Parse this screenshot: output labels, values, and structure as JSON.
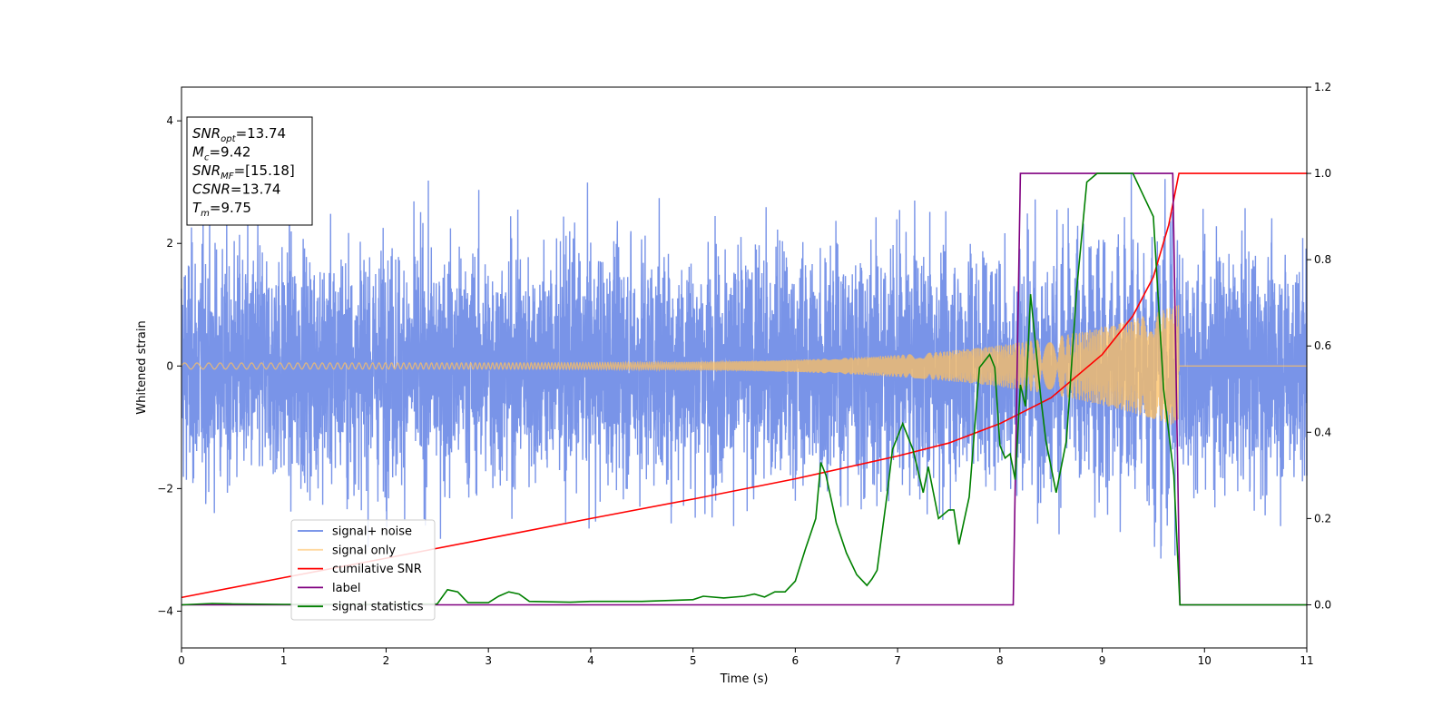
{
  "chart_data": {
    "type": "line",
    "xlabel": "Time (s)",
    "ylabel": "Whitened strain",
    "xlim": [
      0,
      11
    ],
    "ylim_left": [
      -4.6,
      4.55
    ],
    "ylim_right": [
      -0.1,
      1.2
    ],
    "x_ticks": [
      "0",
      "1",
      "2",
      "3",
      "4",
      "5",
      "6",
      "7",
      "8",
      "9",
      "10",
      "11"
    ],
    "y_ticks_left": [
      "−4",
      "−2",
      "0",
      "2",
      "4"
    ],
    "y_ticks_right": [
      "0.0",
      "0.2",
      "0.4",
      "0.6",
      "0.8",
      "1.0",
      "1.2"
    ],
    "legend_position": "lower-left",
    "grid": false,
    "series": [
      {
        "name": "signal+ noise",
        "axis": "left",
        "color": "#6a88e6",
        "description_values": {
          "noise_std": 0.95,
          "t_end": 11
        }
      },
      {
        "name": "signal only",
        "axis": "left",
        "color": "#ffc060",
        "chirp_amplitude_end": 1.0,
        "merger_time": 9.75
      },
      {
        "name": "cumilative SNR",
        "axis": "right",
        "color": "#ff0000",
        "x": [
          0,
          1,
          2,
          3,
          4,
          5,
          6,
          7,
          7.5,
          8,
          8.5,
          9,
          9.3,
          9.5,
          9.65,
          9.75,
          9.76,
          11
        ],
        "y": [
          0.017,
          0.063,
          0.108,
          0.154,
          0.2,
          0.245,
          0.292,
          0.345,
          0.375,
          0.42,
          0.48,
          0.58,
          0.67,
          0.76,
          0.88,
          1.0,
          1.0,
          1.0
        ]
      },
      {
        "name": "label",
        "axis": "right",
        "color": "#800080",
        "x": [
          0,
          8.13,
          8.2,
          9.69,
          9.76,
          11
        ],
        "y": [
          0,
          0,
          1,
          1,
          0,
          0
        ]
      },
      {
        "name": "signal statistics",
        "axis": "right",
        "color": "#008000",
        "x": [
          0,
          0.3,
          0.5,
          1,
          2,
          2.5,
          2.6,
          2.7,
          2.8,
          3.0,
          3.1,
          3.2,
          3.3,
          3.4,
          3.8,
          4.0,
          4.5,
          5.0,
          5.1,
          5.3,
          5.5,
          5.6,
          5.7,
          5.8,
          5.9,
          6.0,
          6.1,
          6.2,
          6.25,
          6.3,
          6.4,
          6.5,
          6.6,
          6.7,
          6.75,
          6.8,
          6.9,
          6.95,
          7.05,
          7.15,
          7.25,
          7.3,
          7.4,
          7.5,
          7.55,
          7.6,
          7.7,
          7.8,
          7.9,
          7.95,
          8.0,
          8.05,
          8.1,
          8.15,
          8.2,
          8.25,
          8.3,
          8.4,
          8.45,
          8.55,
          8.65,
          8.75,
          8.85,
          8.95,
          9.05,
          9.2,
          9.3,
          9.4,
          9.5,
          9.6,
          9.7,
          9.76,
          9.8,
          11
        ],
        "y": [
          0,
          0.003,
          0.002,
          0.001,
          0.001,
          0.002,
          0.035,
          0.03,
          0.005,
          0.005,
          0.02,
          0.03,
          0.025,
          0.008,
          0.006,
          0.008,
          0.008,
          0.012,
          0.02,
          0.016,
          0.02,
          0.025,
          0.018,
          0.03,
          0.03,
          0.055,
          0.13,
          0.2,
          0.33,
          0.3,
          0.19,
          0.12,
          0.07,
          0.045,
          0.06,
          0.08,
          0.26,
          0.36,
          0.42,
          0.36,
          0.26,
          0.32,
          0.2,
          0.22,
          0.22,
          0.14,
          0.25,
          0.55,
          0.58,
          0.55,
          0.37,
          0.34,
          0.35,
          0.29,
          0.51,
          0.46,
          0.72,
          0.48,
          0.38,
          0.26,
          0.38,
          0.73,
          0.98,
          1.0,
          1.0,
          1.0,
          1.0,
          0.95,
          0.9,
          0.5,
          0.3,
          0.0,
          0.0,
          0.0
        ]
      }
    ],
    "annotation_box": {
      "lines": [
        {
          "sym": "SNR",
          "sub": "opt",
          "val": "=13.74"
        },
        {
          "sym": "M",
          "sub": "c",
          "val": "=9.42"
        },
        {
          "sym": "SNR",
          "sub": "MF",
          "val": "=[15.18]"
        },
        {
          "sym": "CSNR",
          "sub": "",
          "val": "=13.74"
        },
        {
          "sym": "T",
          "sub": "m",
          "val": "=9.75"
        }
      ]
    }
  }
}
